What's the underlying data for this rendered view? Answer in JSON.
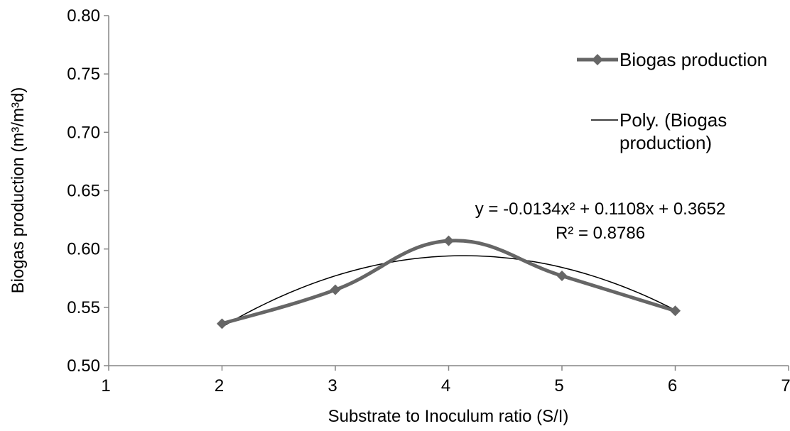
{
  "chart_data": {
    "type": "line",
    "title": "",
    "xlabel": "Substrate to Inoculum ratio (S/I)",
    "ylabel": "Biogas production (m³/m³d)",
    "xlim": [
      1,
      7
    ],
    "ylim": [
      0.5,
      0.8
    ],
    "xticks": [
      1,
      2,
      3,
      4,
      5,
      6,
      7
    ],
    "yticks": [
      0.5,
      0.55,
      0.6,
      0.65,
      0.7,
      0.75,
      0.8
    ],
    "xtick_labels": [
      "1",
      "2",
      "3",
      "4",
      "5",
      "6",
      "7"
    ],
    "ytick_labels": [
      "0.50",
      "0.55",
      "0.60",
      "0.65",
      "0.70",
      "0.75",
      "0.80"
    ],
    "grid": false,
    "legend_position": "right",
    "series": [
      {
        "name": "Biogas production",
        "x": [
          2,
          3,
          4,
          5,
          6
        ],
        "values": [
          0.536,
          0.565,
          0.607,
          0.577,
          0.547
        ],
        "color": "#666666",
        "marker": "diamond",
        "smooth": true
      }
    ],
    "trendline": {
      "name": "Poly. (Biogas production)",
      "type": "polynomial",
      "coefficients": [
        -0.0134,
        0.1108,
        0.3652
      ],
      "x_range": [
        2,
        6
      ],
      "color": "#000000"
    },
    "annotations": {
      "equation": "y = -0.0134x² + 0.1108x + 0.3652",
      "r_squared": "R² = 0.8786"
    }
  }
}
